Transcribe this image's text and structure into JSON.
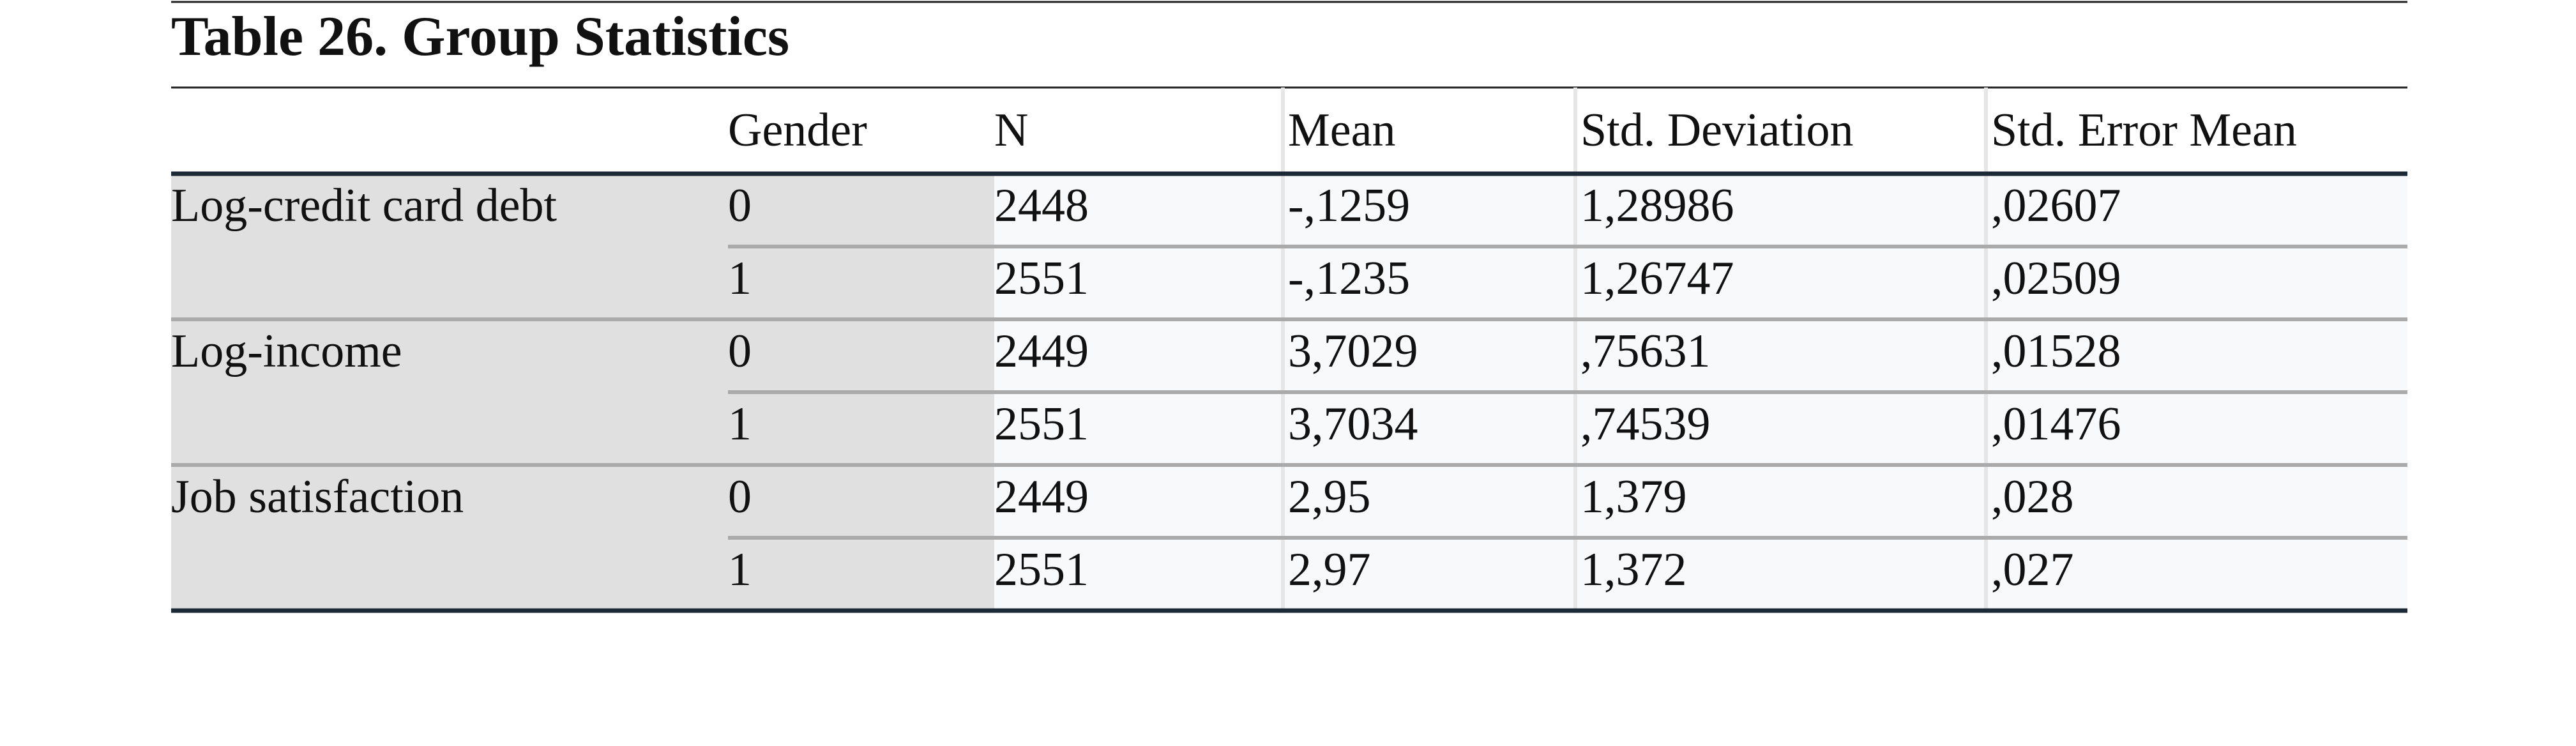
{
  "table": {
    "title": "Table 26. Group Statistics",
    "header": [
      "Gender",
      "N",
      "Mean",
      "Std. Deviation",
      "Std. Error Mean"
    ],
    "groups": [
      {
        "label": "Log-credit card debt",
        "rows": [
          [
            "0",
            "2448",
            "-,1259",
            "1,28986",
            ",02607"
          ],
          [
            "1",
            "2551",
            "-,1235",
            "1,26747",
            ",02509"
          ]
        ]
      },
      {
        "label": "Log-income",
        "rows": [
          [
            "0",
            "2449",
            "3,7029",
            ",75631",
            ",01528"
          ],
          [
            "1",
            "2551",
            "3,7034",
            ",74539",
            ",01476"
          ]
        ]
      },
      {
        "label": "Job satisfaction",
        "rows": [
          [
            "0",
            "2449",
            "2,95",
            "1,379",
            ",028"
          ],
          [
            "1",
            "2551",
            "2,97",
            "1,372",
            ",027"
          ]
        ]
      }
    ]
  }
}
